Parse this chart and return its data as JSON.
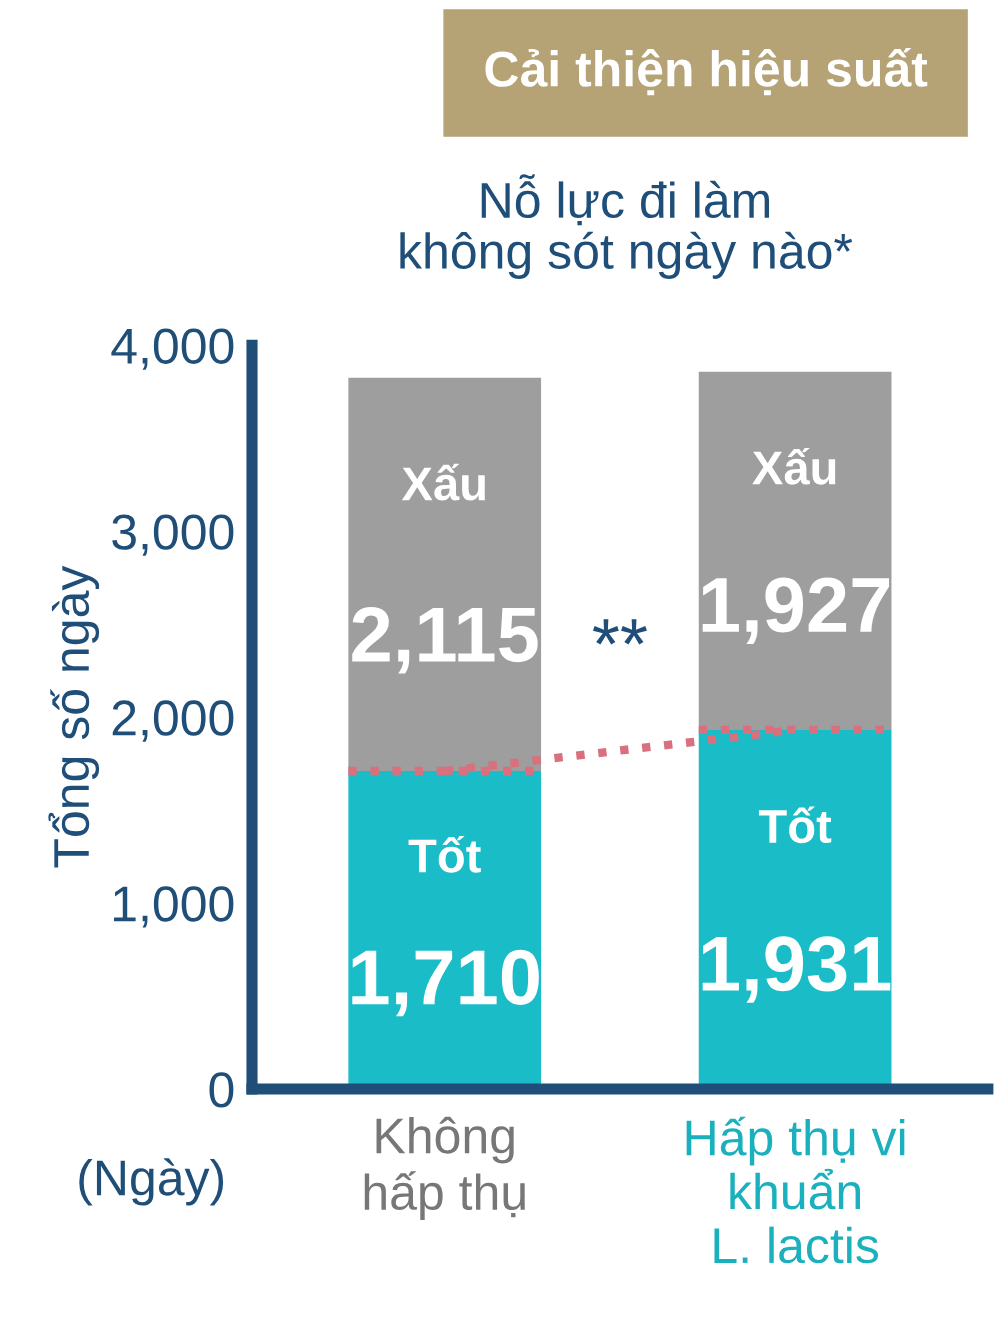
{
  "chart_data": {
    "type": "bar",
    "stacked": true,
    "title": "Nỗ lực đi làm\nkhông sót ngày nào*",
    "ylabel": "Tổng số ngày",
    "categories": [
      "Không\nhấp thụ",
      "Hấp thụ vi\nkhuẩn\nL. lactis"
    ],
    "series": [
      {
        "name": "Tốt",
        "color": "#1abcc8",
        "values": [
          1710,
          1931
        ],
        "value_labels": [
          "1,710",
          "1,931"
        ]
      },
      {
        "name": "Xấu",
        "color": "#9e9e9e",
        "values": [
          2115,
          1927
        ],
        "value_labels": [
          "2,115",
          "1,927"
        ]
      },
      {
        "type": "line",
        "color": "#d9707e",
        "line_style": "dotted",
        "values": [
          1710,
          1931
        ]
      }
    ],
    "ylim": [
      0,
      4000
    ],
    "yticks": [
      0,
      {
        "value": 1000,
        "label": "1,000"
      },
      {
        "value": 2000,
        "label": "2,000"
      },
      {
        "value": 3000,
        "label": "3,000"
      },
      {
        "value": 4000,
        "label": "4,000"
      }
    ],
    "annotations": [
      "Cải thiện hiệu suất",
      "**",
      "(Ngày)"
    ],
    "grid": false,
    "legend": false
  }
}
